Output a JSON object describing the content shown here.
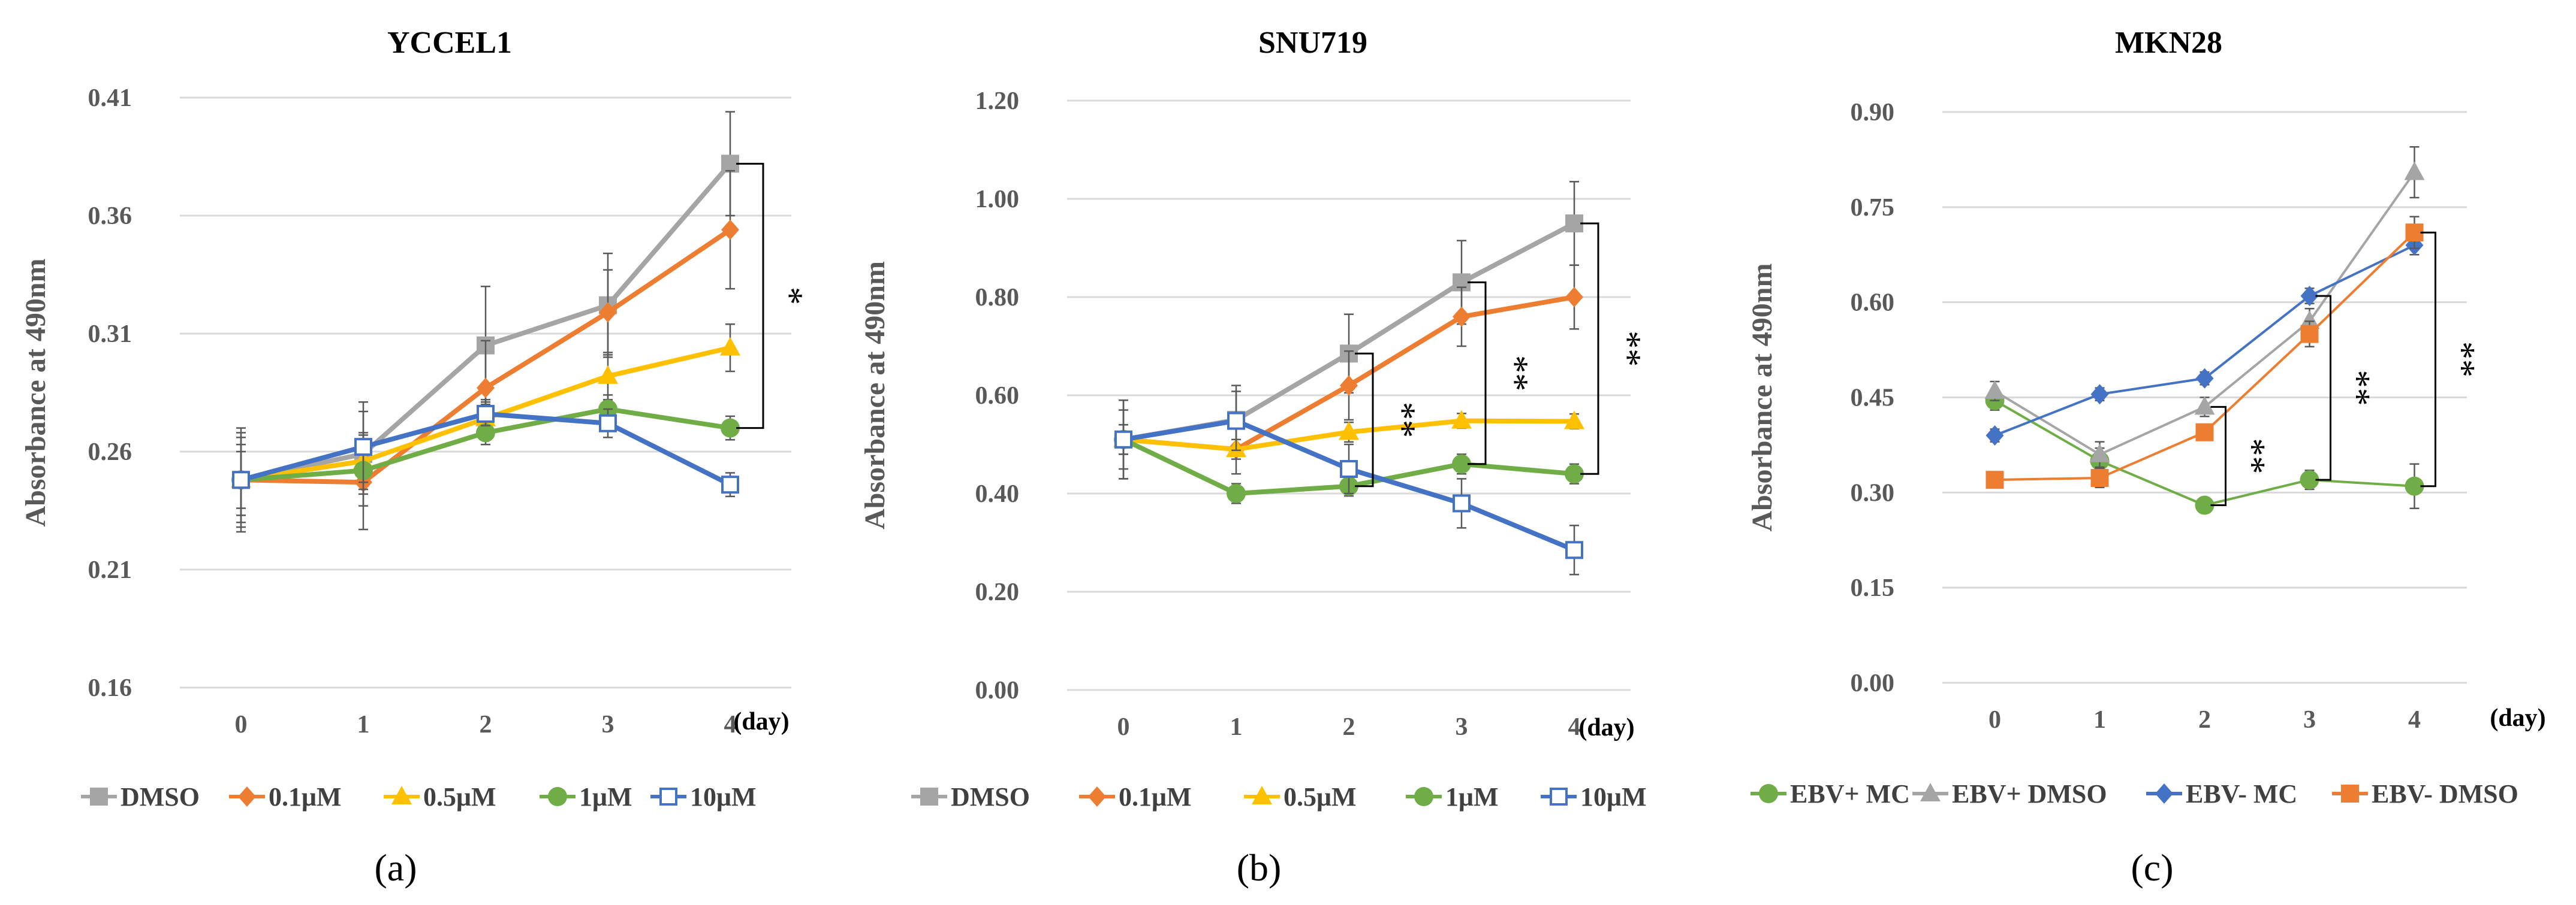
{
  "chart_data": [
    {
      "type": "line",
      "panel_label": "(a)",
      "title": "YCCEL1",
      "xlabel": "(day)",
      "ylabel": "Absorbance at 490nm",
      "x": [
        "0",
        "1",
        "2",
        "3",
        "4"
      ],
      "y_ticks": [
        "0.16",
        "0.21",
        "0.26",
        "0.31",
        "0.36",
        "0.41"
      ],
      "ylim": [
        0.16,
        0.41
      ],
      "grid": true,
      "legend_position": "bottom",
      "series": [
        {
          "name": "DMSO",
          "color": "#a5a5a5",
          "marker": "square",
          "values": [
            0.248,
            0.259,
            0.305,
            0.322,
            0.382
          ],
          "errors": [
            0.018,
            0.022,
            0.025,
            0.022,
            0.022
          ]
        },
        {
          "name": "0.1μM",
          "color": "#ed7d31",
          "marker": "diamond",
          "values": [
            0.248,
            0.247,
            0.287,
            0.319,
            0.354
          ],
          "errors": [
            0.022,
            0.02,
            0.02,
            0.018,
            0.025
          ]
        },
        {
          "name": "0.5μM",
          "color": "#ffc000",
          "marker": "triangle",
          "values": [
            0.248,
            0.256,
            0.274,
            0.292,
            0.304
          ],
          "errors": [
            0.015,
            0.012,
            0.008,
            0.01,
            0.01
          ]
        },
        {
          "name": "1μM",
          "color": "#70ad47",
          "marker": "circle",
          "values": [
            0.248,
            0.252,
            0.268,
            0.278,
            0.27
          ],
          "errors": [
            0.012,
            0.01,
            0.005,
            0.006,
            0.005
          ]
        },
        {
          "name": "10μM",
          "color": "#4472c4",
          "marker": "open-square",
          "values": [
            0.248,
            0.262,
            0.276,
            0.272,
            0.246
          ],
          "errors": [
            0.02,
            0.015,
            0.005,
            0.006,
            0.005
          ]
        }
      ],
      "significance": [
        {
          "from_series": "DMSO",
          "to_series": "1μM",
          "day": "4",
          "label": "*"
        }
      ]
    },
    {
      "type": "line",
      "panel_label": "(b)",
      "title": "SNU719",
      "xlabel": "(day)",
      "ylabel": "Absorbance at 490nm",
      "x": [
        "0",
        "1",
        "2",
        "3",
        "4"
      ],
      "y_ticks": [
        "0.00",
        "0.20",
        "0.40",
        "0.60",
        "0.80",
        "1.00",
        "1.20"
      ],
      "ylim": [
        0,
        1.2
      ],
      "grid": true,
      "legend_position": "bottom",
      "series": [
        {
          "name": "DMSO",
          "color": "#a5a5a5",
          "marker": "square",
          "values": [
            0.51,
            0.55,
            0.685,
            0.83,
            0.95
          ],
          "errors": [
            0.08,
            0.07,
            0.08,
            0.085,
            0.085
          ]
        },
        {
          "name": "0.1μM",
          "color": "#ed7d31",
          "marker": "diamond",
          "values": [
            0.51,
            0.49,
            0.62,
            0.76,
            0.8
          ],
          "errors": [
            0.08,
            0.05,
            0.07,
            0.06,
            0.065
          ]
        },
        {
          "name": "0.5μM",
          "color": "#ffc000",
          "marker": "triangle",
          "values": [
            0.51,
            0.49,
            0.525,
            0.548,
            0.547
          ],
          "errors": [
            0.03,
            0.02,
            0.02,
            0.015,
            0.015
          ]
        },
        {
          "name": "1μM",
          "color": "#70ad47",
          "marker": "circle",
          "values": [
            0.51,
            0.4,
            0.415,
            0.46,
            0.44
          ],
          "errors": [
            0.03,
            0.02,
            0.02,
            0.02,
            0.02
          ]
        },
        {
          "name": "10μM",
          "color": "#4472c4",
          "marker": "open-square",
          "values": [
            0.51,
            0.548,
            0.45,
            0.38,
            0.285
          ],
          "errors": [
            0.06,
            0.06,
            0.05,
            0.05,
            0.05
          ]
        }
      ],
      "significance": [
        {
          "from_series": "DMSO",
          "to_series": "1μM",
          "day": "2",
          "label": "**"
        },
        {
          "from_series": "DMSO",
          "to_series": "1μM",
          "day": "3",
          "label": "**"
        },
        {
          "from_series": "DMSO",
          "to_series": "1μM",
          "day": "4",
          "label": "**"
        }
      ]
    },
    {
      "type": "line",
      "panel_label": "(c)",
      "title": "MKN28",
      "xlabel": "(day)",
      "ylabel": "Absorbance at 490nm",
      "x": [
        "0",
        "1",
        "2",
        "3",
        "4"
      ],
      "y_ticks": [
        "0.00",
        "0.15",
        "0.30",
        "0.45",
        "0.60",
        "0.75",
        "0.90"
      ],
      "ylim": [
        0,
        0.9
      ],
      "grid": true,
      "legend_position": "bottom",
      "series": [
        {
          "name": "EBV+ MC",
          "color": "#70ad47",
          "marker": "circle",
          "values": [
            0.445,
            0.35,
            0.28,
            0.32,
            0.31
          ],
          "errors": [
            0.015,
            0.02,
            0.012,
            0.015,
            0.035
          ]
        },
        {
          "name": "EBV+ DMSO",
          "color": "#a5a5a5",
          "marker": "triangle",
          "values": [
            0.46,
            0.36,
            0.435,
            0.57,
            0.805
          ],
          "errors": [
            0.015,
            0.02,
            0.015,
            0.02,
            0.04
          ]
        },
        {
          "name": "EBV- MC",
          "color": "#4472c4",
          "marker": "diamond",
          "values": [
            0.39,
            0.455,
            0.48,
            0.61,
            0.69
          ],
          "errors": [
            0.01,
            0.01,
            0.01,
            0.012,
            0.015
          ]
        },
        {
          "name": "EBV- DMSO",
          "color": "#ed7d31",
          "marker": "square",
          "values": [
            0.32,
            0.323,
            0.395,
            0.55,
            0.71
          ],
          "errors": [
            0.01,
            0.015,
            0.012,
            0.02,
            0.025
          ]
        }
      ],
      "significance": [
        {
          "from_series": "EBV+ DMSO",
          "to_series": "EBV+ MC",
          "day": "2",
          "label": "**"
        },
        {
          "from_series": "EBV- MC",
          "to_series": "EBV+ MC",
          "day": "3",
          "label": "**"
        },
        {
          "from_series": "EBV- DMSO",
          "to_series": "EBV+ MC",
          "day": "4",
          "label": "**"
        }
      ]
    }
  ]
}
